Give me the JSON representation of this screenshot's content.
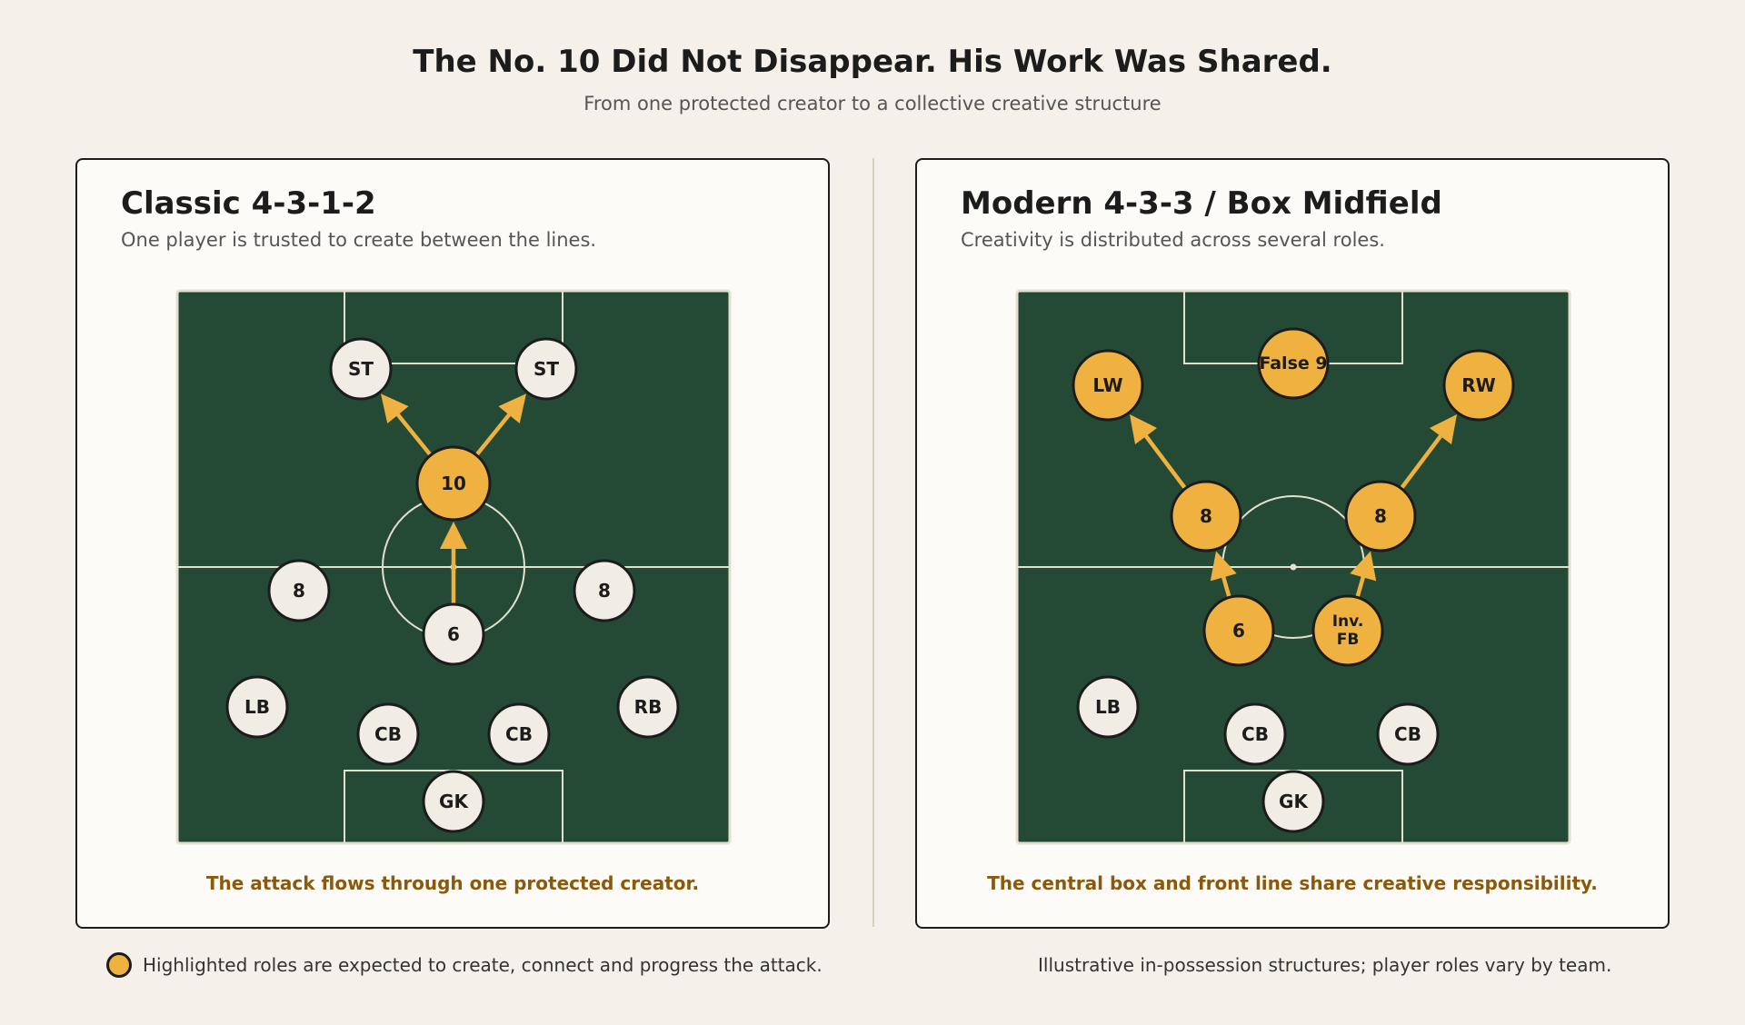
{
  "header": {
    "title": "The No. 10 Did Not Disappear. His Work Was Shared.",
    "subtitle": "From one protected creator to a collective creative structure"
  },
  "colors": {
    "pitch": "#244a35",
    "pitch_lines": "#e6dfcf",
    "highlight": "#efb240",
    "neutral_player": "#f1ede4",
    "outline": "#1c1c1c",
    "caption": "#8a5a0c"
  },
  "panels": [
    {
      "id": "classic",
      "title": "Classic 4-3-1-2",
      "subtitle": "One player is trusted to create between the lines.",
      "caption": "The attack flows through one protected creator.",
      "players": [
        {
          "id": "st1",
          "lines": [
            "ST"
          ],
          "highlight": false,
          "role": "striker-left"
        },
        {
          "id": "st2",
          "lines": [
            "ST"
          ],
          "highlight": false,
          "role": "striker-right"
        },
        {
          "id": "p10",
          "lines": [
            "10"
          ],
          "highlight": true,
          "role": "number-10"
        },
        {
          "id": "m8a",
          "lines": [
            "8"
          ],
          "highlight": false,
          "role": "mid-left"
        },
        {
          "id": "m8b",
          "lines": [
            "8"
          ],
          "highlight": false,
          "role": "mid-right"
        },
        {
          "id": "m6",
          "lines": [
            "6"
          ],
          "highlight": false,
          "role": "holding-mid"
        },
        {
          "id": "lb",
          "lines": [
            "LB"
          ],
          "highlight": false,
          "role": "left-back"
        },
        {
          "id": "rb",
          "lines": [
            "RB"
          ],
          "highlight": false,
          "role": "right-back"
        },
        {
          "id": "cb1",
          "lines": [
            "CB"
          ],
          "highlight": false,
          "role": "centre-back-left"
        },
        {
          "id": "cb2",
          "lines": [
            "CB"
          ],
          "highlight": false,
          "role": "centre-back-right"
        },
        {
          "id": "gk",
          "lines": [
            "GK"
          ],
          "highlight": false,
          "role": "goalkeeper"
        }
      ],
      "arrows": [
        {
          "from": "m6",
          "to": "p10"
        },
        {
          "from": "p10",
          "to": "st1"
        },
        {
          "from": "p10",
          "to": "st2"
        }
      ]
    },
    {
      "id": "modern",
      "title": "Modern 4-3-3 / Box Midfield",
      "subtitle": "Creativity is distributed across several roles.",
      "caption": "The central box and front line share creative responsibility.",
      "players": [
        {
          "id": "lw",
          "lines": [
            "LW"
          ],
          "highlight": true,
          "role": "left-winger"
        },
        {
          "id": "f9",
          "lines": [
            "False 9"
          ],
          "highlight": true,
          "role": "false-nine"
        },
        {
          "id": "rw",
          "lines": [
            "RW"
          ],
          "highlight": true,
          "role": "right-winger"
        },
        {
          "id": "m8a",
          "lines": [
            "8"
          ],
          "highlight": true,
          "role": "mid-left"
        },
        {
          "id": "m8b",
          "lines": [
            "8"
          ],
          "highlight": true,
          "role": "mid-right"
        },
        {
          "id": "m6",
          "lines": [
            "6"
          ],
          "highlight": true,
          "role": "holding-mid"
        },
        {
          "id": "ifb",
          "lines": [
            "Inv.",
            "FB"
          ],
          "highlight": true,
          "role": "inverted-full-back"
        },
        {
          "id": "lb",
          "lines": [
            "LB"
          ],
          "highlight": false,
          "role": "left-back"
        },
        {
          "id": "cb1",
          "lines": [
            "CB"
          ],
          "highlight": false,
          "role": "centre-back-left"
        },
        {
          "id": "cb2",
          "lines": [
            "CB"
          ],
          "highlight": false,
          "role": "centre-back-right"
        },
        {
          "id": "gk",
          "lines": [
            "GK"
          ],
          "highlight": false,
          "role": "goalkeeper"
        }
      ],
      "arrows": [
        {
          "from": "m8a",
          "to": "lw"
        },
        {
          "from": "m8b",
          "to": "rw"
        },
        {
          "from": "m6",
          "to": "m8a"
        },
        {
          "from": "ifb",
          "to": "m8b"
        }
      ]
    }
  ],
  "legend": {
    "text": "Highlighted roles are expected to create, connect and progress the attack."
  },
  "note": "Illustrative in-possession structures; player roles vary by team."
}
